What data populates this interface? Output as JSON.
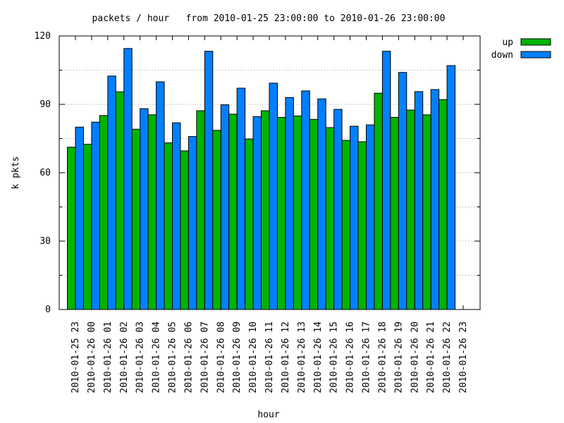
{
  "chart_data": {
    "type": "bar",
    "title": "packets / hour   from 2010-01-25 23:00:00 to 2010-01-26 23:00:00",
    "xlabel": "hour",
    "ylabel": "k pkts",
    "ylim": [
      0,
      120
    ],
    "yticks": [
      "0",
      "30",
      "60",
      "90",
      "120"
    ],
    "grid": true,
    "legend_position": "top-right",
    "categories": [
      "2010-01-25 23",
      "2010-01-26 00",
      "2010-01-26 01",
      "2010-01-26 02",
      "2010-01-26 03",
      "2010-01-26 04",
      "2010-01-26 05",
      "2010-01-26 06",
      "2010-01-26 07",
      "2010-01-26 08",
      "2010-01-26 09",
      "2010-01-26 10",
      "2010-01-26 11",
      "2010-01-26 12",
      "2010-01-26 13",
      "2010-01-26 14",
      "2010-01-26 15",
      "2010-01-26 16",
      "2010-01-26 17",
      "2010-01-26 18",
      "2010-01-26 19",
      "2010-01-26 20",
      "2010-01-26 21",
      "2010-01-26 22",
      "2010-01-26 23"
    ],
    "series": [
      {
        "name": "up",
        "color": "#00b400",
        "values": [
          71.2,
          72.5,
          85.1,
          95.5,
          79.1,
          85.4,
          73.1,
          69.6,
          87.2,
          78.6,
          85.7,
          74.8,
          87.2,
          84.3,
          84.9,
          83.4,
          79.8,
          74.2,
          73.6,
          94.9,
          84.3,
          87.5,
          85.4,
          92.1,
          null
        ]
      },
      {
        "name": "down",
        "color": "#0080ff",
        "values": [
          80.0,
          82.2,
          102.4,
          114.5,
          88.1,
          99.9,
          81.9,
          75.9,
          113.3,
          89.8,
          97.1,
          84.6,
          99.3,
          93.0,
          95.9,
          92.4,
          87.8,
          80.4,
          81.0,
          113.3,
          104.0,
          95.6,
          96.5,
          107.0,
          null
        ]
      }
    ]
  }
}
